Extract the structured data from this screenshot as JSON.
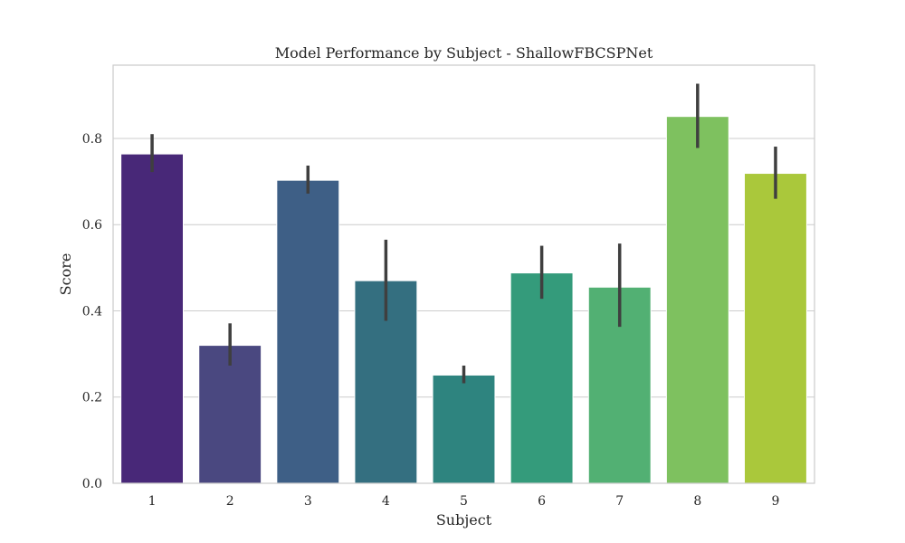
{
  "chart_data": {
    "type": "bar",
    "title": "Model Performance by Subject - ShallowFBCSPNet",
    "xlabel": "Subject",
    "ylabel": "Score",
    "ylim": [
      0,
      0.97
    ],
    "yticks": [
      "0.0",
      "0.2",
      "0.4",
      "0.6",
      "0.8"
    ],
    "ytick_values": [
      0,
      0.2,
      0.4,
      0.6,
      0.8
    ],
    "grid": true,
    "categories": [
      "1",
      "2",
      "3",
      "4",
      "5",
      "6",
      "7",
      "8",
      "9"
    ],
    "values": [
      0.764,
      0.32,
      0.703,
      0.47,
      0.251,
      0.488,
      0.455,
      0.851,
      0.719
    ],
    "error_low": [
      0.722,
      0.273,
      0.672,
      0.377,
      0.232,
      0.428,
      0.363,
      0.778,
      0.66
    ],
    "error_high": [
      0.81,
      0.371,
      0.737,
      0.565,
      0.273,
      0.551,
      0.556,
      0.927,
      0.781
    ],
    "colors": [
      "#482878",
      "#4a4880",
      "#3e5f86",
      "#346f80",
      "#2e847f",
      "#349b7b",
      "#52b073",
      "#7ec15f",
      "#aac83b"
    ]
  }
}
